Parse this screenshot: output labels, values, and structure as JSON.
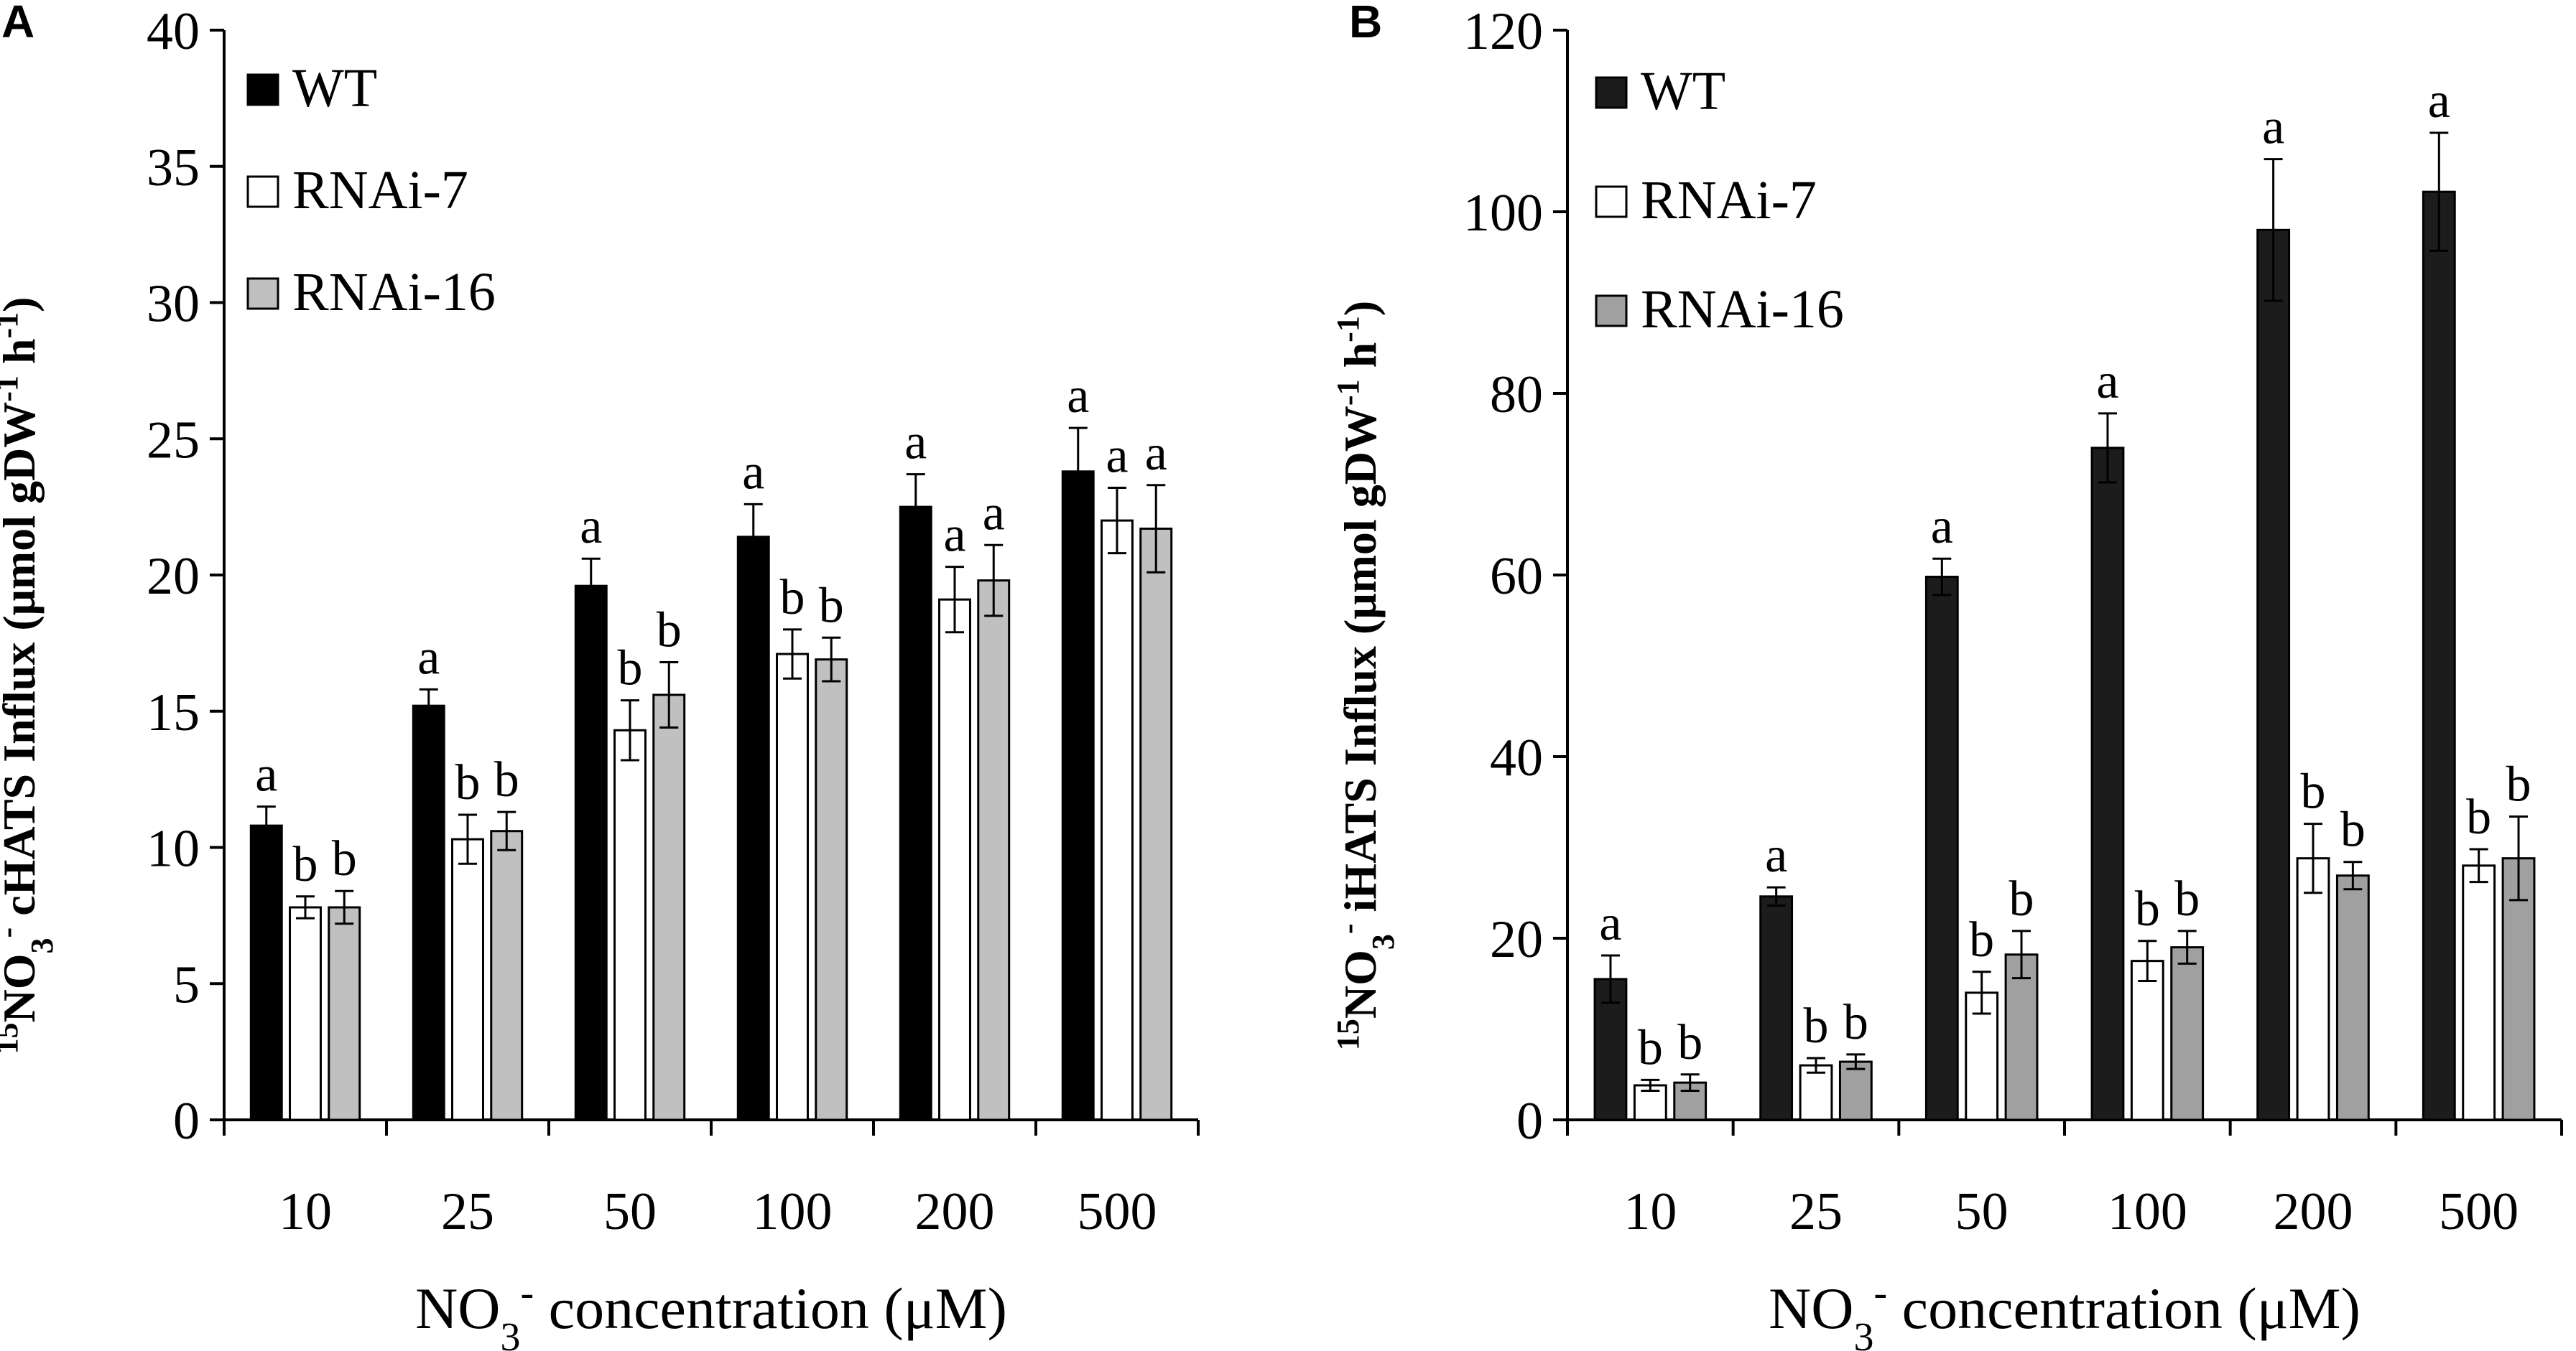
{
  "chart_data": [
    {
      "panel": "A",
      "type": "bar",
      "ylabel": {
        "sup": "15",
        "main": "NO",
        "sub": "3",
        "sup2": "-",
        "rest": " cHATS Influx (μmol gDW",
        "sup3": "-1",
        "rest2": " h",
        "sup4": "-1",
        "rest3": ")"
      },
      "xlabel": {
        "main": "NO",
        "sub": "3",
        "sup": "-",
        "rest": " concentration (μM)"
      },
      "categories": [
        "10",
        "25",
        "50",
        "100",
        "200",
        "500"
      ],
      "ylim": [
        0,
        40
      ],
      "yticks": [
        "0",
        "5",
        "10",
        "15",
        "20",
        "25",
        "30",
        "35",
        "40"
      ],
      "series": [
        {
          "name": "WT",
          "color": "#000000",
          "values": [
            10.8,
            15.2,
            19.6,
            21.4,
            22.5,
            23.8
          ],
          "errors": [
            0.7,
            0.6,
            1.0,
            1.2,
            1.2,
            1.6
          ],
          "sig": [
            "a",
            "a",
            "a",
            "a",
            "a",
            "a"
          ]
        },
        {
          "name": "RNAi-7",
          "color": "#ffffff",
          "values": [
            7.8,
            10.3,
            14.3,
            17.1,
            19.1,
            22.0
          ],
          "errors": [
            0.4,
            0.9,
            1.1,
            0.9,
            1.2,
            1.2
          ],
          "sig": [
            "b",
            "b",
            "b",
            "b",
            "a",
            "a"
          ]
        },
        {
          "name": "RNAi-16",
          "color": "#c0c0c0",
          "values": [
            7.8,
            10.6,
            15.6,
            16.9,
            19.8,
            21.7
          ],
          "errors": [
            0.6,
            0.7,
            1.2,
            0.8,
            1.3,
            1.6
          ],
          "sig": [
            "b",
            "b",
            "b",
            "b",
            "a",
            "a"
          ]
        }
      ]
    },
    {
      "panel": "B",
      "type": "bar",
      "ylabel": {
        "sup": "15",
        "main": "NO",
        "sub": "3",
        "sup2": "-",
        "rest": " iHATS Influx (μmol gDW",
        "sup3": "-1",
        "rest2": " h",
        "sup4": "-1",
        "rest3": ")"
      },
      "xlabel": {
        "main": "NO",
        "sub": "3",
        "sup": "-",
        "rest": " concentration (μM)"
      },
      "categories": [
        "10",
        "25",
        "50",
        "100",
        "200",
        "500"
      ],
      "ylim": [
        0,
        120
      ],
      "yticks": [
        "0",
        "20",
        "40",
        "60",
        "80",
        "100",
        "120"
      ],
      "series": [
        {
          "name": "WT",
          "color": "#1c1c1c",
          "values": [
            15.5,
            24.6,
            59.8,
            74.0,
            98.0,
            102.2
          ],
          "errors": [
            2.6,
            1.0,
            2.0,
            3.8,
            7.8,
            6.5
          ],
          "sig": [
            "a",
            "a",
            "a",
            "a",
            "a",
            "a"
          ]
        },
        {
          "name": "RNAi-7",
          "color": "#ffffff",
          "values": [
            3.8,
            6.0,
            14.0,
            17.5,
            28.8,
            28.0
          ],
          "errors": [
            0.6,
            0.8,
            2.3,
            2.2,
            3.8,
            1.8
          ],
          "sig": [
            "b",
            "b",
            "b",
            "b",
            "b",
            "b"
          ]
        },
        {
          "name": "RNAi-16",
          "color": "#a0a0a0",
          "values": [
            4.1,
            6.4,
            18.2,
            19.0,
            26.9,
            28.8
          ],
          "errors": [
            0.9,
            0.8,
            2.6,
            1.8,
            1.5,
            4.6
          ],
          "sig": [
            "b",
            "b",
            "b",
            "b",
            "b",
            "b"
          ]
        }
      ]
    }
  ]
}
